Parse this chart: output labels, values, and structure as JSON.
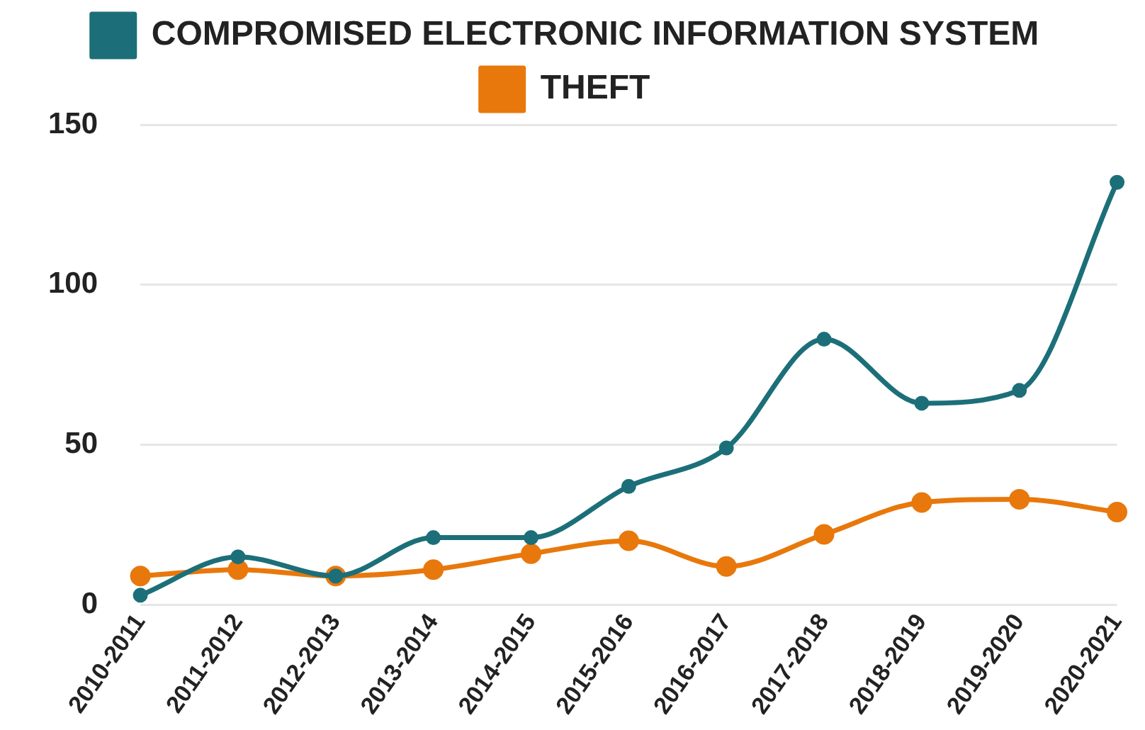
{
  "chart_data": {
    "type": "line",
    "categories": [
      "2010-2011",
      "2011-2012",
      "2012-2013",
      "2013-2014",
      "2014-2015",
      "2015-2016",
      "2016-2017",
      "2017-2018",
      "2018-2019",
      "2019-2020",
      "2020-2021"
    ],
    "series": [
      {
        "name": "COMPROMISED ELECTRONIC INFORMATION SYSTEM",
        "color": "#1c6f78",
        "values": [
          3,
          15,
          9,
          21,
          21,
          37,
          49,
          83,
          63,
          67,
          132
        ]
      },
      {
        "name": "THEFT",
        "color": "#e8780c",
        "values": [
          9,
          11,
          9,
          11,
          16,
          20,
          12,
          22,
          32,
          33,
          29
        ]
      }
    ],
    "ylim": [
      0,
      150
    ],
    "yticks": [
      0,
      50,
      100,
      150
    ],
    "grid": "y",
    "legend": "top",
    "marker": "circle",
    "line_style": "solid"
  }
}
